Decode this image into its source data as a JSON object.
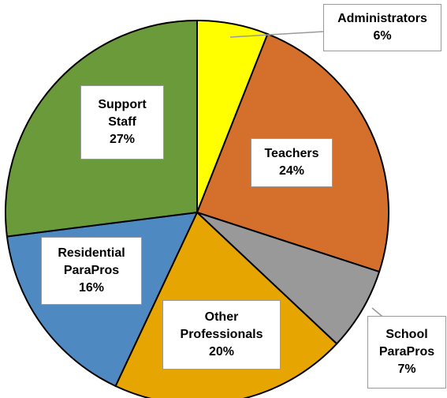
{
  "chart_data": {
    "type": "pie",
    "categories": [
      "Administrators",
      "Teachers",
      "School ParaPros",
      "Other Professionals",
      "Residential ParaPros",
      "Support Staff"
    ],
    "values": [
      6,
      24,
      7,
      20,
      16,
      27
    ],
    "value_labels": [
      "6%",
      "24%",
      "7%",
      "20%",
      "16%",
      "27%"
    ],
    "colors": [
      "#ffff00",
      "#d4702c",
      "#999999",
      "#e6a500",
      "#4f89c2",
      "#6b9a3b"
    ]
  }
}
